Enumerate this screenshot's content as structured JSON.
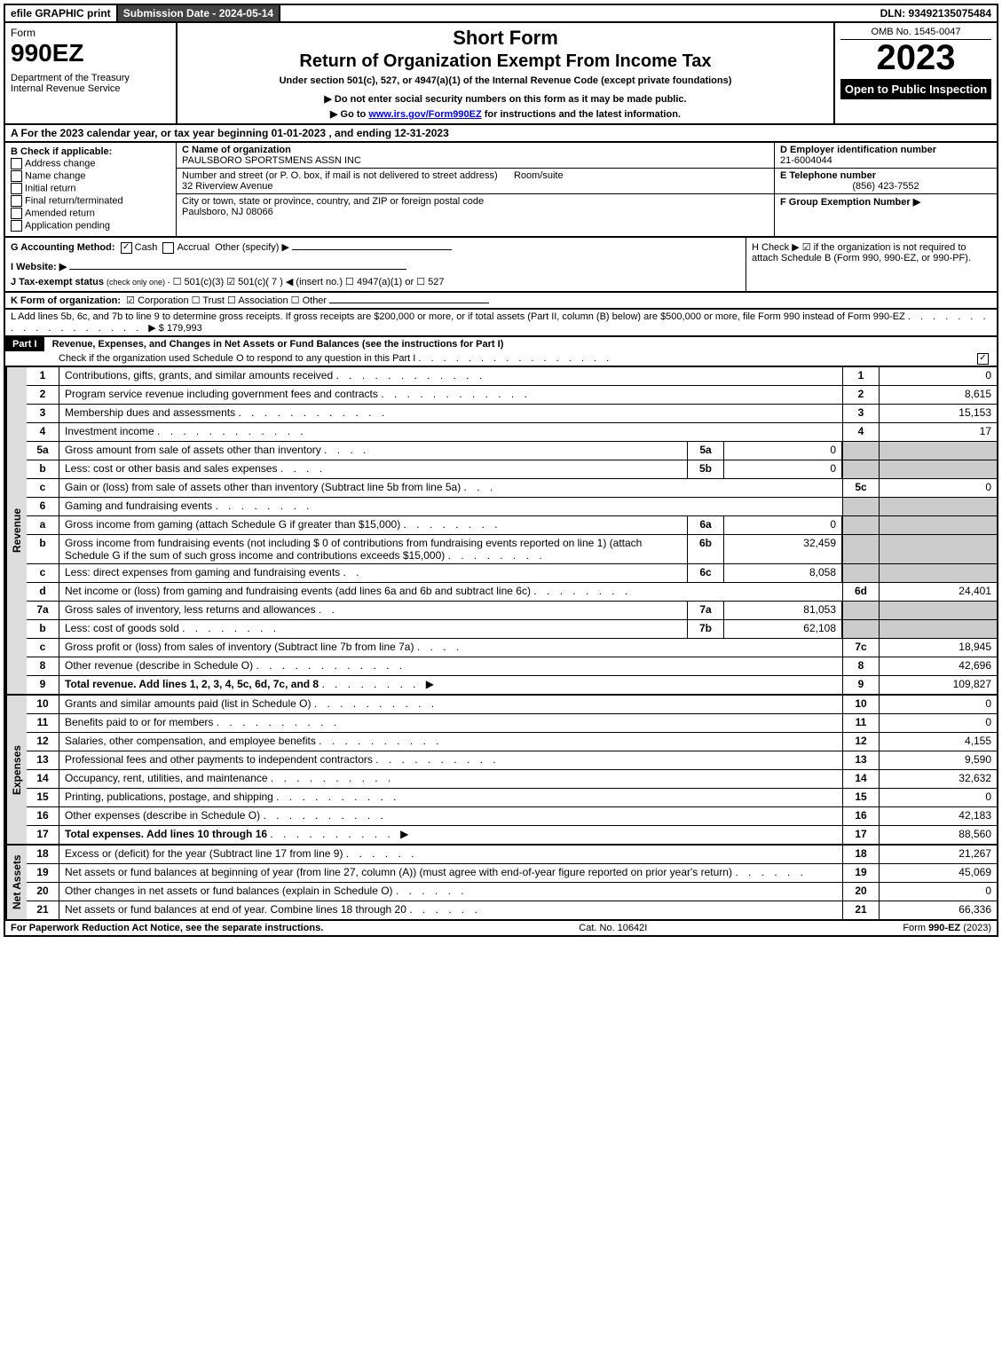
{
  "topbar": {
    "efile": "efile GRAPHIC print",
    "submission": "Submission Date - 2024-05-14",
    "dln": "DLN: 93492135075484"
  },
  "header": {
    "form": "Form",
    "form_no": "990EZ",
    "dept": "Department of the Treasury\nInternal Revenue Service",
    "short": "Short Form",
    "title": "Return of Organization Exempt From Income Tax",
    "under": "Under section 501(c), 527, or 4947(a)(1) of the Internal Revenue Code (except private foundations)",
    "do_not": "▶ Do not enter social security numbers on this form as it may be made public.",
    "goto_pre": "▶ Go to ",
    "goto_link": "www.irs.gov/Form990EZ",
    "goto_post": " for instructions and the latest information.",
    "omb": "OMB No. 1545-0047",
    "year": "2023",
    "open": "Open to Public Inspection"
  },
  "row_a": "A  For the 2023 calendar year, or tax year beginning 01-01-2023 , and ending 12-31-2023",
  "b": {
    "head": "B  Check if applicable:",
    "opts": [
      "Address change",
      "Name change",
      "Initial return",
      "Final return/terminated",
      "Amended return",
      "Application pending"
    ]
  },
  "c": {
    "name_lbl": "C Name of organization",
    "name": "PAULSBORO SPORTSMENS ASSN INC",
    "addr_lbl": "Number and street (or P. O. box, if mail is not delivered to street address)",
    "room_lbl": "Room/suite",
    "addr": "32 Riverview Avenue",
    "city_lbl": "City or town, state or province, country, and ZIP or foreign postal code",
    "city": "Paulsboro, NJ  08066"
  },
  "d": {
    "lbl": "D Employer identification number",
    "val": "21-6004044"
  },
  "e": {
    "lbl": "E Telephone number",
    "val": "(856) 423-7552"
  },
  "f": {
    "lbl": "F Group Exemption Number  ▶",
    "val": ""
  },
  "g": {
    "lbl": "G Accounting Method:",
    "cash": "Cash",
    "accrual": "Accrual",
    "other": "Other (specify) ▶"
  },
  "h": {
    "text": "H  Check ▶ ☑ if the organization is not required to attach Schedule B (Form 990, 990-EZ, or 990-PF)."
  },
  "i": {
    "lbl": "I Website: ▶"
  },
  "j": {
    "lbl": "J Tax-exempt status",
    "sub": "(check only one) -",
    "opts": "☐ 501(c)(3)  ☑ 501(c)( 7 ) ◀ (insert no.)  ☐ 4947(a)(1) or  ☐ 527"
  },
  "k": {
    "lbl": "K Form of organization:",
    "opts": "☑ Corporation  ☐ Trust  ☐ Association  ☐ Other"
  },
  "l": {
    "text": "L Add lines 5b, 6c, and 7b to line 9 to determine gross receipts. If gross receipts are $200,000 or more, or if total assets (Part II, column (B) below) are $500,000 or more, file Form 990 instead of Form 990-EZ",
    "val": "▶ $ 179,993"
  },
  "part1": {
    "label": "Part I",
    "title": "Revenue, Expenses, and Changes in Net Assets or Fund Balances (see the instructions for Part I)",
    "check": "Check if the organization used Schedule O to respond to any question in this Part I"
  },
  "revenue_label": "Revenue",
  "expenses_label": "Expenses",
  "netassets_label": "Net Assets",
  "lines": {
    "l1": {
      "n": "1",
      "d": "Contributions, gifts, grants, and similar amounts received",
      "el": "1",
      "ev": "0"
    },
    "l2": {
      "n": "2",
      "d": "Program service revenue including government fees and contracts",
      "el": "2",
      "ev": "8,615"
    },
    "l3": {
      "n": "3",
      "d": "Membership dues and assessments",
      "el": "3",
      "ev": "15,153"
    },
    "l4": {
      "n": "4",
      "d": "Investment income",
      "el": "4",
      "ev": "17"
    },
    "l5a": {
      "n": "5a",
      "d": "Gross amount from sale of assets other than inventory",
      "ml": "5a",
      "mv": "0"
    },
    "l5b": {
      "n": "b",
      "d": "Less: cost or other basis and sales expenses",
      "ml": "5b",
      "mv": "0"
    },
    "l5c": {
      "n": "c",
      "d": "Gain or (loss) from sale of assets other than inventory (Subtract line 5b from line 5a)",
      "el": "5c",
      "ev": "0"
    },
    "l6": {
      "n": "6",
      "d": "Gaming and fundraising events"
    },
    "l6a": {
      "n": "a",
      "d": "Gross income from gaming (attach Schedule G if greater than $15,000)",
      "ml": "6a",
      "mv": "0"
    },
    "l6b": {
      "n": "b",
      "d": "Gross income from fundraising events (not including $  0           of contributions from fundraising events reported on line 1) (attach Schedule G if the sum of such gross income and contributions exceeds $15,000)",
      "ml": "6b",
      "mv": "32,459"
    },
    "l6c": {
      "n": "c",
      "d": "Less: direct expenses from gaming and fundraising events",
      "ml": "6c",
      "mv": "8,058"
    },
    "l6d": {
      "n": "d",
      "d": "Net income or (loss) from gaming and fundraising events (add lines 6a and 6b and subtract line 6c)",
      "el": "6d",
      "ev": "24,401"
    },
    "l7a": {
      "n": "7a",
      "d": "Gross sales of inventory, less returns and allowances",
      "ml": "7a",
      "mv": "81,053"
    },
    "l7b": {
      "n": "b",
      "d": "Less: cost of goods sold",
      "ml": "7b",
      "mv": "62,108"
    },
    "l7c": {
      "n": "c",
      "d": "Gross profit or (loss) from sales of inventory (Subtract line 7b from line 7a)",
      "el": "7c",
      "ev": "18,945"
    },
    "l8": {
      "n": "8",
      "d": "Other revenue (describe in Schedule O)",
      "el": "8",
      "ev": "42,696"
    },
    "l9": {
      "n": "9",
      "d": "Total revenue. Add lines 1, 2, 3, 4, 5c, 6d, 7c, and 8",
      "el": "9",
      "ev": "109,827",
      "arrow": "▶"
    },
    "l10": {
      "n": "10",
      "d": "Grants and similar amounts paid (list in Schedule O)",
      "el": "10",
      "ev": "0"
    },
    "l11": {
      "n": "11",
      "d": "Benefits paid to or for members",
      "el": "11",
      "ev": "0"
    },
    "l12": {
      "n": "12",
      "d": "Salaries, other compensation, and employee benefits",
      "el": "12",
      "ev": "4,155"
    },
    "l13": {
      "n": "13",
      "d": "Professional fees and other payments to independent contractors",
      "el": "13",
      "ev": "9,590"
    },
    "l14": {
      "n": "14",
      "d": "Occupancy, rent, utilities, and maintenance",
      "el": "14",
      "ev": "32,632"
    },
    "l15": {
      "n": "15",
      "d": "Printing, publications, postage, and shipping",
      "el": "15",
      "ev": "0"
    },
    "l16": {
      "n": "16",
      "d": "Other expenses (describe in Schedule O)",
      "el": "16",
      "ev": "42,183"
    },
    "l17": {
      "n": "17",
      "d": "Total expenses. Add lines 10 through 16",
      "el": "17",
      "ev": "88,560",
      "arrow": "▶"
    },
    "l18": {
      "n": "18",
      "d": "Excess or (deficit) for the year (Subtract line 17 from line 9)",
      "el": "18",
      "ev": "21,267"
    },
    "l19": {
      "n": "19",
      "d": "Net assets or fund balances at beginning of year (from line 27, column (A)) (must agree with end-of-year figure reported on prior year's return)",
      "el": "19",
      "ev": "45,069"
    },
    "l20": {
      "n": "20",
      "d": "Other changes in net assets or fund balances (explain in Schedule O)",
      "el": "20",
      "ev": "0"
    },
    "l21": {
      "n": "21",
      "d": "Net assets or fund balances at end of year. Combine lines 18 through 20",
      "el": "21",
      "ev": "66,336"
    }
  },
  "footer": {
    "left": "For Paperwork Reduction Act Notice, see the separate instructions.",
    "mid": "Cat. No. 10642I",
    "right_pre": "Form ",
    "right_b": "990-EZ",
    "right_post": " (2023)"
  }
}
